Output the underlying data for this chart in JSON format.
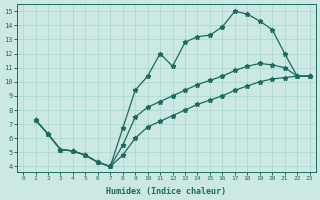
{
  "background_color": "#cce8e4",
  "grid_color": "#aad4ce",
  "line_color": "#1a6b5a",
  "xlabel": "Humidex (Indice chaleur)",
  "xlim": [
    -0.5,
    23.5
  ],
  "ylim": [
    3.6,
    15.5
  ],
  "xticks": [
    0,
    1,
    2,
    3,
    4,
    5,
    6,
    7,
    8,
    9,
    10,
    11,
    12,
    13,
    14,
    15,
    16,
    17,
    18,
    19,
    20,
    21,
    22,
    23
  ],
  "yticks": [
    4,
    5,
    6,
    7,
    8,
    9,
    10,
    11,
    12,
    13,
    14,
    15
  ],
  "line1_x": [
    1,
    2,
    3,
    4,
    5,
    6,
    7,
    8,
    9,
    10,
    11,
    12,
    13,
    14,
    15,
    16,
    17,
    18,
    19,
    20,
    21,
    22,
    23
  ],
  "line1_y": [
    7.3,
    6.3,
    5.2,
    5.1,
    4.8,
    4.3,
    4.0,
    6.7,
    9.4,
    10.4,
    12.0,
    11.1,
    12.8,
    13.2,
    13.3,
    13.9,
    15.0,
    14.8,
    14.3,
    13.7,
    12.0,
    10.4,
    10.4
  ],
  "line2_x": [
    1,
    2,
    3,
    4,
    5,
    6,
    7,
    8,
    9,
    10,
    11,
    12,
    13,
    14,
    15,
    16,
    17,
    18,
    19,
    20,
    21,
    22,
    23
  ],
  "line2_y": [
    7.3,
    6.3,
    5.2,
    5.1,
    4.8,
    4.3,
    4.0,
    5.5,
    7.5,
    8.2,
    8.6,
    9.0,
    9.4,
    9.8,
    10.1,
    10.4,
    10.8,
    11.1,
    11.3,
    11.2,
    11.0,
    10.4,
    10.4
  ],
  "line3_x": [
    1,
    2,
    3,
    4,
    5,
    6,
    7,
    8,
    9,
    10,
    11,
    12,
    13,
    14,
    15,
    16,
    17,
    18,
    19,
    20,
    21,
    22,
    23
  ],
  "line3_y": [
    7.3,
    6.3,
    5.2,
    5.1,
    4.8,
    4.3,
    4.0,
    4.8,
    6.0,
    6.8,
    7.2,
    7.6,
    8.0,
    8.4,
    8.7,
    9.0,
    9.4,
    9.7,
    10.0,
    10.2,
    10.3,
    10.4,
    10.4
  ]
}
